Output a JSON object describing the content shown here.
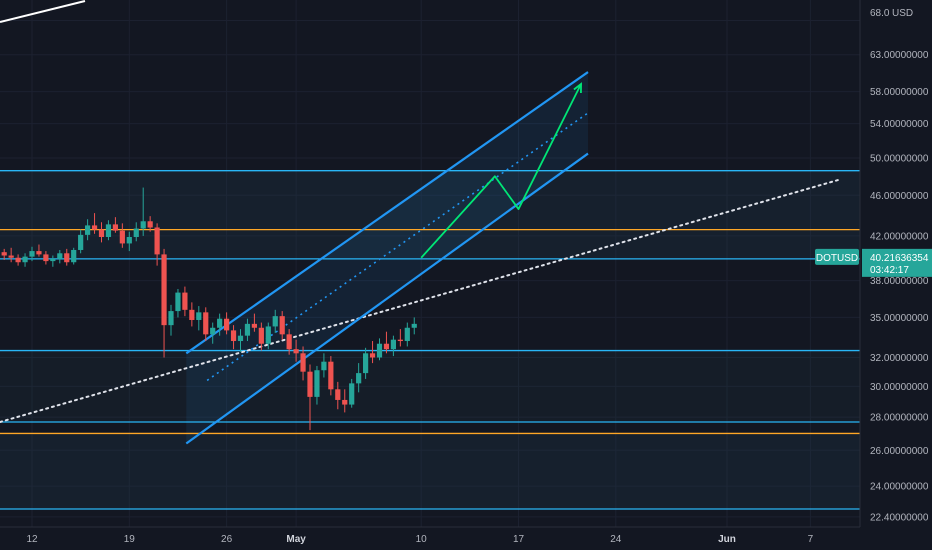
{
  "chart_data": {
    "type": "candlestick",
    "symbol": "DOTUSD",
    "currency": "USD",
    "last_price": "40.21636354",
    "countdown": "03:42:17",
    "y_axis": {
      "range": [
        21.9,
        71.2
      ],
      "scale": "log",
      "ticks": [
        {
          "value": 68.0,
          "label": "68.0"
        },
        {
          "value": 63.0,
          "label": "63.00000000"
        },
        {
          "value": 58.0,
          "label": "58.00000000"
        },
        {
          "value": 54.0,
          "label": "54.00000000"
        },
        {
          "value": 50.0,
          "label": "50.00000000"
        },
        {
          "value": 46.0,
          "label": "46.00000000"
        },
        {
          "value": 42.0,
          "label": "42.00000000"
        },
        {
          "value": 38.0,
          "label": "38.00000000"
        },
        {
          "value": 35.0,
          "label": "35.00000000"
        },
        {
          "value": 32.0,
          "label": "32.00000000"
        },
        {
          "value": 30.0,
          "label": "30.00000000"
        },
        {
          "value": 28.0,
          "label": "28.00000000"
        },
        {
          "value": 26.0,
          "label": "26.00000000"
        },
        {
          "value": 24.0,
          "label": "24.00000000"
        },
        {
          "value": 22.4,
          "label": "22.40000000"
        }
      ]
    },
    "x_axis": {
      "ticks": [
        {
          "day": 0,
          "label": "12"
        },
        {
          "day": 7,
          "label": "19"
        },
        {
          "day": 14,
          "label": "26"
        },
        {
          "day": 19,
          "label": "May",
          "bold": true
        },
        {
          "day": 28,
          "label": "10"
        },
        {
          "day": 35,
          "label": "17"
        },
        {
          "day": 42,
          "label": "24"
        },
        {
          "day": 50,
          "label": "Jun",
          "bold": true
        },
        {
          "day": 56,
          "label": "7"
        }
      ]
    },
    "horizontal_levels": [
      {
        "price": 48.6,
        "color": "#29b6f6"
      },
      {
        "price": 42.6,
        "color": "#ffa726"
      },
      {
        "price": 39.9,
        "color": "#29b6f6"
      },
      {
        "price": 32.5,
        "color": "#29b6f6"
      },
      {
        "price": 27.7,
        "color": "#29b6f6"
      },
      {
        "price": 27.0,
        "color": "#ffa726"
      },
      {
        "price": 22.8,
        "color": "#29b6f6"
      }
    ],
    "channel": {
      "upper": [
        {
          "day": 11.1,
          "price": 32.3
        },
        {
          "day": 40.0,
          "price": 60.6
        }
      ],
      "lower": [
        {
          "day": 11.1,
          "price": 26.4
        },
        {
          "day": 40.0,
          "price": 50.5
        }
      ],
      "median": [
        {
          "day": 12.6,
          "price": 30.4
        },
        {
          "day": 40.0,
          "price": 55.3
        }
      ]
    },
    "trendline": [
      {
        "day": -2.3,
        "price": 27.7
      },
      {
        "day": 58.0,
        "price": 47.6
      }
    ],
    "projection": [
      {
        "day": 28.0,
        "price": 40.0
      },
      {
        "day": 33.3,
        "price": 48.0
      },
      {
        "day": 35.0,
        "price": 44.6
      },
      {
        "day": 39.5,
        "price": 59.0
      }
    ],
    "candles": [
      [
        -2,
        40.5,
        40.8,
        39.8,
        40.2
      ],
      [
        -1.5,
        40.2,
        40.9,
        39.6,
        40.0
      ],
      [
        -1,
        40.0,
        40.3,
        39.3,
        39.6
      ],
      [
        -0.5,
        39.6,
        40.4,
        39.2,
        40.1
      ],
      [
        0,
        40.1,
        41.0,
        39.7,
        40.6
      ],
      [
        0.5,
        40.6,
        41.2,
        40.1,
        40.3
      ],
      [
        1,
        40.3,
        40.6,
        39.4,
        39.7
      ],
      [
        1.5,
        39.7,
        40.2,
        39.2,
        39.9
      ],
      [
        2,
        39.9,
        40.7,
        39.5,
        40.4
      ],
      [
        2.5,
        40.4,
        40.8,
        39.3,
        39.6
      ],
      [
        3,
        39.6,
        40.9,
        39.4,
        40.7
      ],
      [
        3.5,
        40.7,
        42.6,
        40.4,
        42.1
      ],
      [
        4,
        42.1,
        43.6,
        41.6,
        43.0
      ],
      [
        4.5,
        43.0,
        44.2,
        42.2,
        42.6
      ],
      [
        5,
        42.6,
        43.3,
        41.4,
        41.9
      ],
      [
        5.5,
        41.9,
        43.5,
        41.6,
        43.1
      ],
      [
        6,
        43.1,
        43.8,
        42.3,
        42.5
      ],
      [
        6.5,
        42.5,
        43.2,
        40.9,
        41.3
      ],
      [
        7,
        41.3,
        42.4,
        40.6,
        41.9
      ],
      [
        7.5,
        41.9,
        43.3,
        41.5,
        42.7
      ],
      [
        8,
        42.7,
        46.8,
        42.0,
        43.4
      ],
      [
        8.5,
        43.4,
        43.9,
        42.4,
        42.8
      ],
      [
        9,
        42.8,
        43.2,
        39.3,
        40.3
      ],
      [
        9.5,
        40.3,
        40.8,
        32.0,
        34.4
      ],
      [
        10,
        34.4,
        36.0,
        33.6,
        35.5
      ],
      [
        10.5,
        35.5,
        37.3,
        35.0,
        37.0
      ],
      [
        11,
        37.0,
        37.5,
        35.1,
        35.6
      ],
      [
        11.5,
        35.6,
        36.2,
        34.3,
        34.8
      ],
      [
        12,
        34.8,
        35.9,
        34.0,
        35.4
      ],
      [
        12.5,
        35.4,
        35.8,
        33.2,
        33.7
      ],
      [
        13,
        33.7,
        34.6,
        33.0,
        34.2
      ],
      [
        13.5,
        34.2,
        35.3,
        33.6,
        34.9
      ],
      [
        14,
        34.9,
        35.4,
        33.7,
        34.0
      ],
      [
        14.5,
        34.0,
        34.4,
        32.6,
        33.2
      ],
      [
        15,
        33.2,
        34.1,
        32.4,
        33.6
      ],
      [
        15.5,
        33.6,
        34.9,
        33.2,
        34.5
      ],
      [
        16,
        34.5,
        35.3,
        33.9,
        34.2
      ],
      [
        16.5,
        34.2,
        34.6,
        32.5,
        33.0
      ],
      [
        17,
        33.0,
        34.6,
        32.6,
        34.3
      ],
      [
        17.5,
        34.3,
        35.6,
        33.8,
        35.1
      ],
      [
        18,
        35.1,
        35.5,
        33.3,
        33.7
      ],
      [
        18.5,
        33.7,
        34.1,
        32.2,
        32.6
      ],
      [
        19,
        32.6,
        33.3,
        31.7,
        32.3
      ],
      [
        19.5,
        32.3,
        32.8,
        30.4,
        31.0
      ],
      [
        20,
        31.0,
        31.5,
        27.2,
        29.3
      ],
      [
        20.5,
        29.3,
        31.4,
        28.8,
        31.1
      ],
      [
        21,
        31.1,
        32.3,
        30.6,
        31.7
      ],
      [
        21.5,
        31.7,
        32.1,
        29.4,
        29.8
      ],
      [
        22,
        29.8,
        30.3,
        28.5,
        29.1
      ],
      [
        22.5,
        29.1,
        29.8,
        28.3,
        28.8
      ],
      [
        23,
        28.8,
        30.5,
        28.6,
        30.2
      ],
      [
        23.5,
        30.2,
        31.6,
        29.6,
        30.9
      ],
      [
        24,
        30.9,
        32.7,
        30.5,
        32.3
      ],
      [
        24.5,
        32.3,
        33.2,
        31.6,
        32.0
      ],
      [
        25,
        32.0,
        33.4,
        31.8,
        33.0
      ],
      [
        25.5,
        33.0,
        33.9,
        32.3,
        32.6
      ],
      [
        26,
        32.6,
        33.6,
        32.1,
        33.3
      ],
      [
        26.5,
        33.3,
        34.1,
        32.8,
        33.2
      ],
      [
        27,
        33.2,
        34.6,
        32.8,
        34.2
      ],
      [
        27.5,
        34.2,
        35.0,
        33.7,
        34.5
      ]
    ]
  }
}
